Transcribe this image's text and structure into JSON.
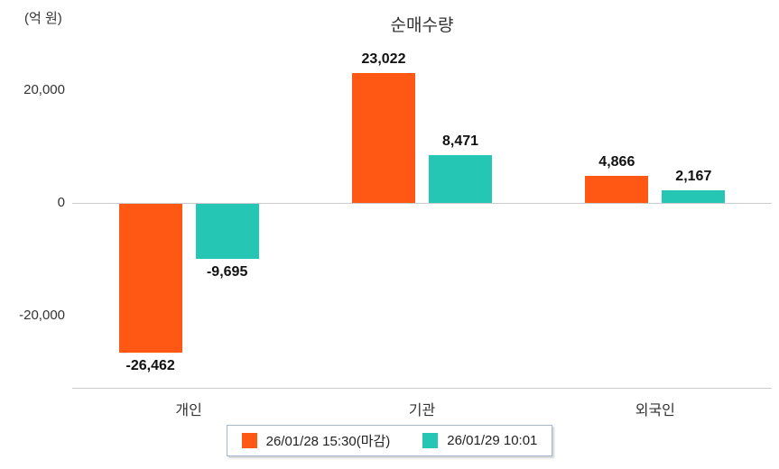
{
  "chart": {
    "title": "순매수량",
    "unit_label": "(억 원)"
  },
  "chart_data": {
    "type": "bar",
    "title": "순매수량",
    "ylabel": "(억 원)",
    "categories": [
      "개인",
      "기관",
      "외국인"
    ],
    "series": [
      {
        "name": "26/01/28 15:30(마감)",
        "color": "#FF5714",
        "values": [
          -26462,
          23022,
          4866
        ]
      },
      {
        "name": "26/01/29 10:01",
        "color": "#26C6B4",
        "values": [
          -9695,
          8471,
          2167
        ]
      }
    ],
    "data_labels": [
      [
        "-26,462",
        "23,022",
        "4,866"
      ],
      [
        "-9,695",
        "8,471",
        "2,167"
      ]
    ],
    "yticks": [
      20000,
      0,
      -20000
    ],
    "ytick_labels": [
      "20,000",
      "0",
      "-20,000"
    ],
    "ylim": [
      -32000,
      28000
    ],
    "grid": false,
    "legend_position": "bottom",
    "axis_color": "#cccccc"
  }
}
